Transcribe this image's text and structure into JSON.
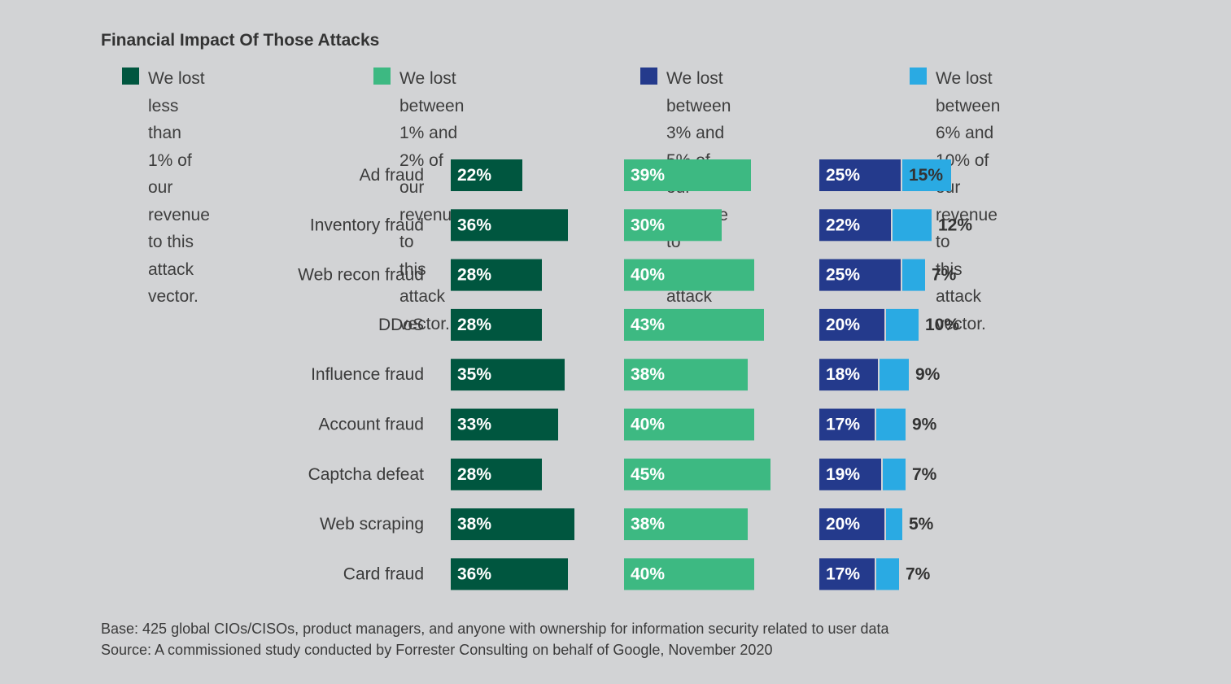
{
  "title": "Financial Impact Of Those Attacks",
  "legend": [
    {
      "text": "We lost less than 1% of\nour revenue to this\nattack vector.",
      "color": "#00563f"
    },
    {
      "text": "We lost between 1% and\n2% of our revenue to\nthis attack vector.",
      "color": "#3db982"
    },
    {
      "text": "We lost between 3% and\n5% of our revenue to\nthis attack vector.",
      "color": "#243a8c"
    },
    {
      "text": "We lost between 6% and\n10% of our revenue to\nthis attack vector.",
      "color": "#2aaae3"
    }
  ],
  "chart_data": {
    "type": "bar",
    "title": "Financial Impact Of Those Attacks",
    "categories": [
      "Ad fraud",
      "Inventory fraud",
      "Web recon fraud",
      "DDoS",
      "Influence fraud",
      "Account fraud",
      "Captcha defeat",
      "Web scraping",
      "Card fraud"
    ],
    "series": [
      {
        "name": "We lost less than 1% of our revenue to this attack vector.",
        "color": "#00563f",
        "values": [
          22,
          36,
          28,
          28,
          35,
          33,
          28,
          38,
          36
        ]
      },
      {
        "name": "We lost between 1% and 2% of our revenue to this attack vector.",
        "color": "#3db982",
        "values": [
          39,
          30,
          40,
          43,
          38,
          40,
          45,
          38,
          40
        ]
      },
      {
        "name": "We lost between 3% and 5% of our revenue to this attack vector.",
        "color": "#243a8c",
        "values": [
          25,
          22,
          25,
          20,
          18,
          17,
          19,
          20,
          17
        ]
      },
      {
        "name": "We lost between 6% and 10% of our revenue to this attack vector.",
        "color": "#2aaae3",
        "values": [
          15,
          12,
          7,
          10,
          9,
          9,
          7,
          5,
          7
        ]
      }
    ],
    "value_suffix": "%"
  },
  "footnotes": {
    "base": "Base: 425 global CIOs/CISOs, product managers, and anyone with ownership for information security related to user data",
    "source": "Source: A commissioned study conducted by Forrester Consulting on behalf of Google, November 2020"
  }
}
